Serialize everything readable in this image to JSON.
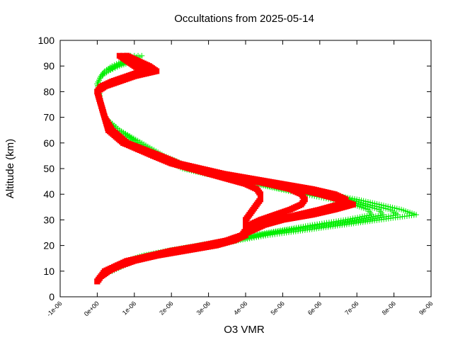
{
  "chart_data": {
    "type": "scatter",
    "title": "Occultations from 2025-05-14",
    "xlabel": "O3 VMR",
    "ylabel": "Altitude (km)",
    "xlim": [
      -1e-06,
      9e-06
    ],
    "ylim": [
      0,
      100
    ],
    "x_ticks": [
      -1e-06,
      0,
      1e-06,
      2e-06,
      3e-06,
      4e-06,
      5e-06,
      6e-06,
      7e-06,
      8e-06,
      9e-06
    ],
    "x_tick_labels": [
      "-1e-06",
      "0e+00",
      "1e-06",
      "2e-06",
      "3e-06",
      "4e-06",
      "5e-06",
      "6e-06",
      "7e-06",
      "8e-06",
      "9e-06"
    ],
    "y_ticks": [
      0,
      10,
      20,
      30,
      40,
      50,
      60,
      70,
      80,
      90,
      100
    ],
    "y_tick_labels": [
      "0",
      "10",
      "20",
      "30",
      "40",
      "50",
      "60",
      "70",
      "80",
      "90",
      "100"
    ],
    "grid": false,
    "series": [
      {
        "marker": "plus",
        "color": "#00ee00",
        "profiles": [
          {
            "altitude": [
              10,
              12,
              14,
              16,
              18,
              20,
              22,
              24,
              26,
              28,
              30,
              32,
              34,
              36,
              38,
              40,
              42,
              44,
              46,
              48,
              50,
              55,
              60,
              65,
              70,
              75,
              80,
              83,
              86,
              88,
              90,
              92,
              94
            ],
            "vmr": [
              4e-07,
              7e-07,
              1e-06,
              1.6e-06,
              2.4e-06,
              3.2e-06,
              3.8e-06,
              4.6e-06,
              5.6e-06,
              6.6e-06,
              7.6e-06,
              8.6e-06,
              8.2e-06,
              7.6e-06,
              7e-06,
              6.2e-06,
              5.4e-06,
              4.7e-06,
              3.9e-06,
              3.2e-06,
              2.6e-06,
              1.8e-06,
              1.2e-06,
              6e-07,
              2e-07,
              1e-07,
              5e-08,
              0.0,
              1e-07,
              3e-07,
              6e-07,
              1e-06,
              1.2e-06
            ]
          },
          {
            "altitude": [
              10,
              12,
              14,
              16,
              18,
              20,
              22,
              24,
              26,
              28,
              30,
              32,
              34,
              36,
              38,
              40,
              42,
              44,
              46,
              48,
              50,
              55,
              60,
              65,
              70,
              75,
              80,
              83,
              86,
              88,
              90,
              92,
              94
            ],
            "vmr": [
              3e-07,
              6e-07,
              9e-07,
              1.4e-06,
              2.2e-06,
              3e-06,
              3.7e-06,
              4.4e-06,
              5.3e-06,
              6.3e-06,
              7.3e-06,
              8.1e-06,
              7.9e-06,
              7.3e-06,
              6.8e-06,
              6e-06,
              5.2e-06,
              4.5e-06,
              3.8e-06,
              3.1e-06,
              2.5e-06,
              1.7e-06,
              1.1e-06,
              6e-07,
              2e-07,
              1e-07,
              5e-08,
              0.0,
              1e-07,
              3e-07,
              5e-07,
              9e-07,
              1.1e-06
            ]
          },
          {
            "altitude": [
              10,
              12,
              14,
              16,
              18,
              20,
              22,
              24,
              26,
              28,
              30,
              32,
              34,
              36,
              38,
              40,
              42,
              44,
              46,
              48,
              50,
              55,
              60,
              65,
              70,
              75,
              80,
              83,
              86,
              88,
              90,
              92,
              94
            ],
            "vmr": [
              3e-07,
              6e-07,
              9e-07,
              1.3e-06,
              2e-06,
              2.8e-06,
              3.6e-06,
              4.3e-06,
              5.1e-06,
              6e-06,
              7e-06,
              7.7e-06,
              7.6e-06,
              7.1e-06,
              6.6e-06,
              5.8e-06,
              5e-06,
              4.4e-06,
              3.7e-06,
              3e-06,
              2.4e-06,
              1.6e-06,
              1e-06,
              5e-07,
              2e-07,
              1e-07,
              5e-08,
              0.0,
              1e-07,
              2e-07,
              5e-07,
              8e-07,
              1e-06
            ]
          },
          {
            "altitude": [
              10,
              12,
              14,
              16,
              18,
              20,
              22,
              24,
              26,
              28,
              30,
              32,
              34,
              36,
              38,
              40,
              42,
              44,
              46,
              48,
              50,
              55,
              60,
              65,
              70,
              75,
              80,
              83,
              86,
              88,
              90,
              92,
              94
            ],
            "vmr": [
              2e-07,
              5e-07,
              8e-07,
              1.2e-06,
              1.9e-06,
              2.7e-06,
              3.5e-06,
              4.2e-06,
              5e-06,
              5.8e-06,
              6.7e-06,
              7.4e-06,
              7.3e-06,
              6.9e-06,
              6.3e-06,
              5.6e-06,
              4.9e-06,
              4.3e-06,
              3.6e-06,
              2.9e-06,
              2.3e-06,
              1.6e-06,
              1e-06,
              5e-07,
              2e-07,
              1e-07,
              5e-08,
              0.0,
              1e-07,
              2e-07,
              4e-07,
              7e-07,
              9e-07
            ]
          }
        ]
      },
      {
        "marker": "square",
        "color": "#ff0000",
        "profiles": [
          {
            "altitude": [
              6,
              8,
              10,
              12,
              14,
              16,
              18,
              20,
              22,
              24,
              26,
              28,
              30,
              32,
              34,
              36,
              38,
              40,
              42,
              44,
              46,
              48,
              50,
              52,
              55,
              60,
              65,
              70,
              75,
              80,
              82,
              84,
              86,
              88,
              90,
              92,
              94
            ],
            "vmr": [
              0.0,
              1e-07,
              3e-07,
              6e-07,
              1e-06,
              1.6e-06,
              2.4e-06,
              3.2e-06,
              3.7e-06,
              4e-06,
              4e-06,
              4e-06,
              4e-06,
              4.1e-06,
              4.2e-06,
              4.3e-06,
              4.4e-06,
              4.4e-06,
              4.3e-06,
              4e-06,
              3.5e-06,
              3e-06,
              2.5e-06,
              2e-06,
              1.5e-06,
              7e-07,
              3e-07,
              2e-07,
              1e-07,
              0.0,
              1e-07,
              4e-07,
              8e-07,
              1.2e-06,
              1e-06,
              8e-07,
              6e-07
            ]
          },
          {
            "altitude": [
              6,
              8,
              10,
              12,
              14,
              16,
              18,
              20,
              22,
              24,
              26,
              28,
              30,
              32,
              34,
              36,
              38,
              40,
              42,
              44,
              46,
              48,
              50,
              52,
              55,
              60,
              65,
              70,
              75,
              80,
              82,
              84,
              86,
              88,
              90,
              92,
              94
            ],
            "vmr": [
              0.0,
              1e-07,
              3e-07,
              5e-07,
              9e-07,
              1.5e-06,
              2.2e-06,
              3e-06,
              3.6e-06,
              3.9e-06,
              4e-06,
              4.1e-06,
              4.4e-06,
              4.8e-06,
              5.2e-06,
              5.5e-06,
              5.6e-06,
              5.5e-06,
              5.2e-06,
              4.6e-06,
              3.9e-06,
              3.2e-06,
              2.7e-06,
              2.1e-06,
              1.6e-06,
              8e-07,
              3e-07,
              2e-07,
              1e-07,
              0.0,
              2e-07,
              5e-07,
              9e-07,
              1.5e-06,
              1.3e-06,
              1e-06,
              8e-07
            ]
          },
          {
            "altitude": [
              6,
              8,
              10,
              12,
              14,
              16,
              18,
              20,
              22,
              24,
              26,
              28,
              30,
              32,
              34,
              36,
              38,
              40,
              42,
              44,
              46,
              48,
              50,
              52,
              55,
              60,
              65,
              70,
              75,
              80,
              82,
              84,
              86,
              88,
              90,
              92,
              94
            ],
            "vmr": [
              0.0,
              1e-07,
              3e-07,
              5e-07,
              9e-07,
              1.4e-06,
              2.1e-06,
              2.9e-06,
              3.5e-06,
              3.9e-06,
              4.1e-06,
              4.3e-06,
              4.8e-06,
              5.4e-06,
              6e-06,
              6.5e-06,
              6.7e-06,
              6.4e-06,
              5.8e-06,
              5e-06,
              4.2e-06,
              3.4e-06,
              2.8e-06,
              2.2e-06,
              1.7e-06,
              8e-07,
              4e-07,
              2e-07,
              1e-07,
              0.0,
              2e-07,
              6e-07,
              1e-06,
              1.6e-06,
              1.4e-06,
              1.1e-06,
              8e-07
            ]
          },
          {
            "altitude": [
              6,
              8,
              10,
              12,
              14,
              16,
              18,
              20,
              22,
              24,
              26,
              28,
              30,
              32,
              34,
              36,
              38,
              40,
              42,
              44,
              46,
              48,
              50,
              52,
              55,
              60,
              65,
              70,
              75,
              80,
              82,
              84,
              86,
              88,
              90,
              92,
              94
            ],
            "vmr": [
              0.0,
              1e-07,
              2e-07,
              5e-07,
              8e-07,
              1.4e-06,
              2e-06,
              2.8e-06,
              3.5e-06,
              3.9e-06,
              4.2e-06,
              4.5e-06,
              5e-06,
              5.8e-06,
              6.4e-06,
              6.9e-06,
              6.5e-06,
              6e-06,
              5.4e-06,
              4.7e-06,
              4e-06,
              3.3e-06,
              2.7e-06,
              2.1e-06,
              1.6e-06,
              7e-07,
              3e-07,
              2e-07,
              1e-07,
              0.0,
              1e-07,
              5e-07,
              9e-07,
              1.4e-06,
              1.2e-06,
              1e-06,
              7e-07
            ]
          }
        ]
      }
    ]
  }
}
